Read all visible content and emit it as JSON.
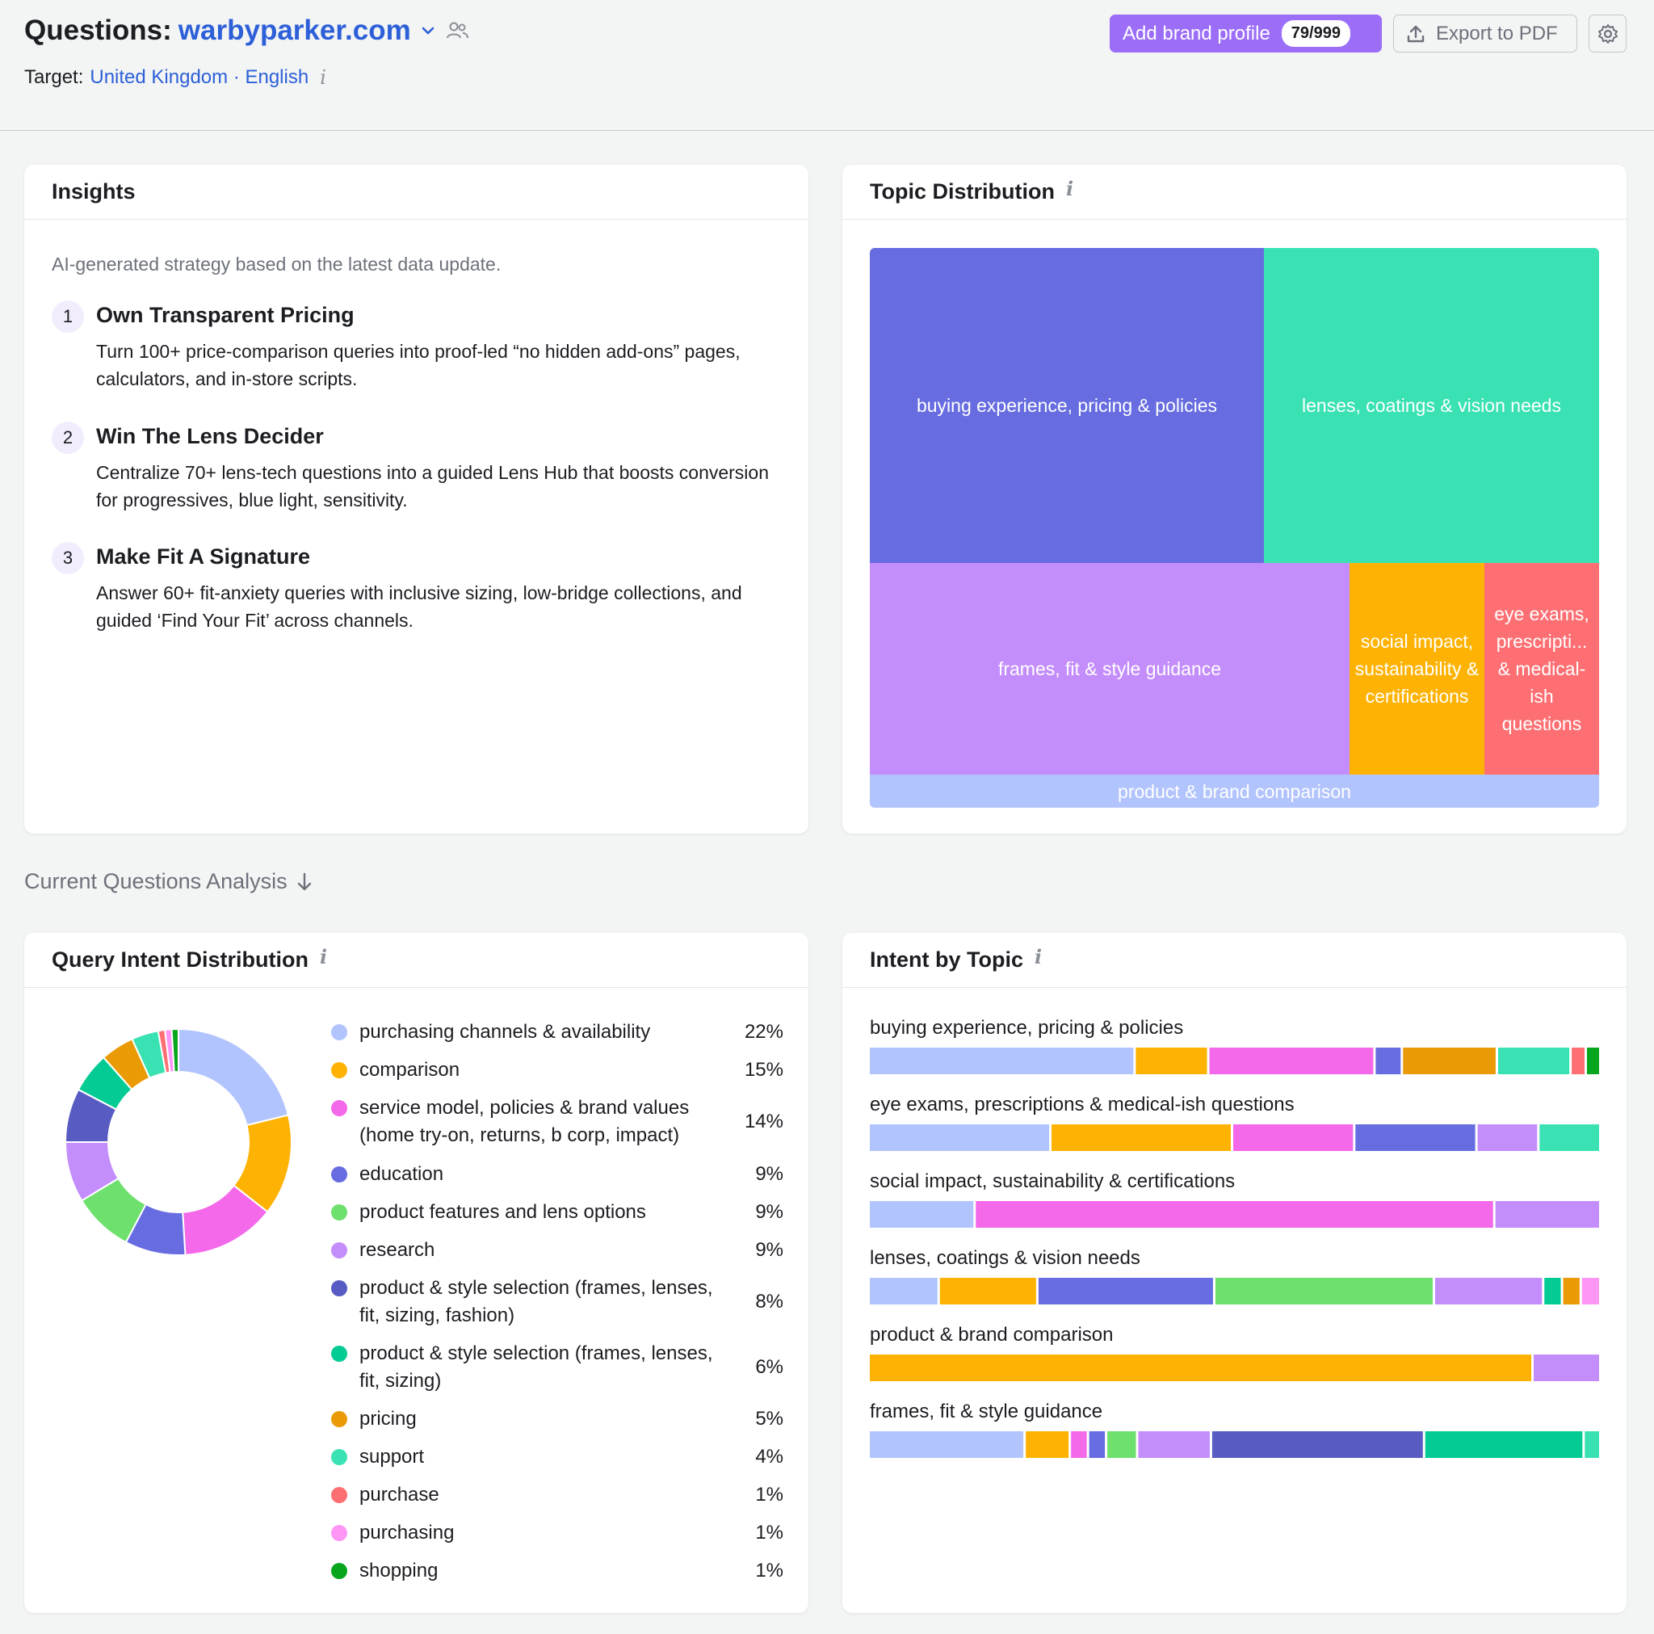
{
  "header": {
    "title_prefix": "Questions:",
    "domain": "warbyparker.com",
    "target_label": "Target:",
    "target_value": "United Kingdom · English",
    "brand_button_label": "Add brand profile",
    "brand_count": "79/999",
    "export_label": "Export to PDF",
    "icons": [
      "chevron-down-icon",
      "people-icon",
      "info-icon",
      "upload-icon",
      "gear-icon"
    ]
  },
  "insights": {
    "title": "Insights",
    "subtitle": "AI-generated strategy based on the latest data update.",
    "items": [
      {
        "num": "1",
        "title": "Own Transparent Pricing",
        "text": "Turn 100+ price-comparison queries into proof-led “no hidden add-ons” pages, calculators, and in-store scripts."
      },
      {
        "num": "2",
        "title": "Win The Lens Decider",
        "text": "Centralize 70+ lens-tech questions into a guided Lens Hub that boosts conversion for progressives, blue light, sensitivity."
      },
      {
        "num": "3",
        "title": "Make Fit A Signature",
        "text": "Answer 60+ fit-anxiety queries with inclusive sizing, low-bridge collections, and guided ‘Find Your Fit’ across channels."
      }
    ]
  },
  "topic_distribution": {
    "title": "Topic Distribution",
    "tiles": [
      {
        "label": "buying experience, pricing & policies",
        "color": "#676de0"
      },
      {
        "label": "lenses, coatings & vision needs",
        "color": "#3ae2b3"
      },
      {
        "label": "frames, fit & style guidance",
        "color": "#c38dfb"
      },
      {
        "label": "social impact, sustainability & certifications",
        "color": "#feb304"
      },
      {
        "label": "eye exams, prescripti... & medical-ish questions",
        "color": "#fd6f72"
      },
      {
        "label": "product & brand comparison",
        "color": "#b2c4fd"
      }
    ]
  },
  "section_label": "Current Questions Analysis",
  "query_intent": {
    "title": "Query Intent Distribution",
    "items": [
      {
        "label": "purchasing channels & availability",
        "pct": "22%",
        "value": 22,
        "color": "#b2c4fd"
      },
      {
        "label": "comparison",
        "pct": "15%",
        "value": 15,
        "color": "#feb304"
      },
      {
        "label": "service model, policies & brand values (home try-on, returns, b corp, impact)",
        "pct": "14%",
        "value": 14,
        "color": "#f468ea"
      },
      {
        "label": "education",
        "pct": "9%",
        "value": 9,
        "color": "#676de0"
      },
      {
        "label": "product features and lens options",
        "pct": "9%",
        "value": 9,
        "color": "#6ee06d"
      },
      {
        "label": "research",
        "pct": "9%",
        "value": 9,
        "color": "#c38dfb"
      },
      {
        "label": "product & style selection (frames, lenses, fit, sizing, fashion)",
        "pct": "8%",
        "value": 8,
        "color": "#585bc2"
      },
      {
        "label": "product & style selection (frames, lenses, fit, sizing)",
        "pct": "6%",
        "value": 6,
        "color": "#04cb93"
      },
      {
        "label": "pricing",
        "pct": "5%",
        "value": 5,
        "color": "#ea9a04"
      },
      {
        "label": "support",
        "pct": "4%",
        "value": 4,
        "color": "#3ae2b3"
      },
      {
        "label": "purchase",
        "pct": "1%",
        "value": 1,
        "color": "#fd6f72"
      },
      {
        "label": "purchasing",
        "pct": "1%",
        "value": 1,
        "color": "#fd96f4"
      },
      {
        "label": "shopping",
        "pct": "1%",
        "value": 1,
        "color": "#08a61e"
      }
    ]
  },
  "intent_by_topic": {
    "title": "Intent by Topic",
    "rows": [
      {
        "topic": "buying experience, pricing & policies",
        "segments": [
          {
            "color": "#b2c4fd",
            "value": 37
          },
          {
            "color": "#feb304",
            "value": 10
          },
          {
            "color": "#f468ea",
            "value": 23
          },
          {
            "color": "#676de0",
            "value": 3.5
          },
          {
            "color": "#ea9a04",
            "value": 13
          },
          {
            "color": "#3ae2b3",
            "value": 10
          },
          {
            "color": "#fd6f72",
            "value": 1.8
          },
          {
            "color": "#08a61e",
            "value": 1.7
          }
        ]
      },
      {
        "topic": "eye exams, prescriptions & medical-ish questions",
        "segments": [
          {
            "color": "#b2c4fd",
            "value": 25
          },
          {
            "color": "#feb304",
            "value": 25
          },
          {
            "color": "#f468ea",
            "value": 16.7
          },
          {
            "color": "#676de0",
            "value": 16.7
          },
          {
            "color": "#c38dfb",
            "value": 8.3
          },
          {
            "color": "#3ae2b3",
            "value": 8.3
          }
        ]
      },
      {
        "topic": "social impact, sustainability & certifications",
        "segments": [
          {
            "color": "#b2c4fd",
            "value": 14.3
          },
          {
            "color": "#f468ea",
            "value": 71.4
          },
          {
            "color": "#c38dfb",
            "value": 14.3
          }
        ]
      },
      {
        "topic": "lenses, coatings & vision needs",
        "segments": [
          {
            "color": "#b2c4fd",
            "value": 9.5
          },
          {
            "color": "#feb304",
            "value": 13.5
          },
          {
            "color": "#676de0",
            "value": 24.5
          },
          {
            "color": "#6ee06d",
            "value": 30.5
          },
          {
            "color": "#c38dfb",
            "value": 15
          },
          {
            "color": "#04cb93",
            "value": 2.3
          },
          {
            "color": "#ea9a04",
            "value": 2.3
          },
          {
            "color": "#fd96f4",
            "value": 2.4
          }
        ]
      },
      {
        "topic": "product & brand comparison",
        "segments": [
          {
            "color": "#feb304",
            "value": 91
          },
          {
            "color": "#c38dfb",
            "value": 9
          }
        ]
      },
      {
        "topic": "frames, fit & style guidance",
        "segments": [
          {
            "color": "#b2c4fd",
            "value": 21.5
          },
          {
            "color": "#feb304",
            "value": 6
          },
          {
            "color": "#f468ea",
            "value": 2.2
          },
          {
            "color": "#676de0",
            "value": 2.2
          },
          {
            "color": "#6ee06d",
            "value": 4
          },
          {
            "color": "#c38dfb",
            "value": 10
          },
          {
            "color": "#585bc2",
            "value": 29.5
          },
          {
            "color": "#04cb93",
            "value": 22
          },
          {
            "color": "#3ae2b3",
            "value": 2
          }
        ]
      }
    ]
  },
  "chart_data": [
    {
      "type": "pie",
      "categories": [
        "purchasing channels & availability",
        "comparison",
        "service model, policies & brand values (home try-on, returns, b corp, impact)",
        "education",
        "product features and lens options",
        "research",
        "product & style selection (frames, lenses, fit, sizing, fashion)",
        "product & style selection (frames, lenses, fit, sizing)",
        "pricing",
        "support",
        "purchase",
        "purchasing",
        "shopping"
      ],
      "values": [
        22,
        15,
        14,
        9,
        9,
        9,
        8,
        6,
        5,
        4,
        1,
        1,
        1
      ],
      "title": "Query Intent Distribution"
    }
  ]
}
